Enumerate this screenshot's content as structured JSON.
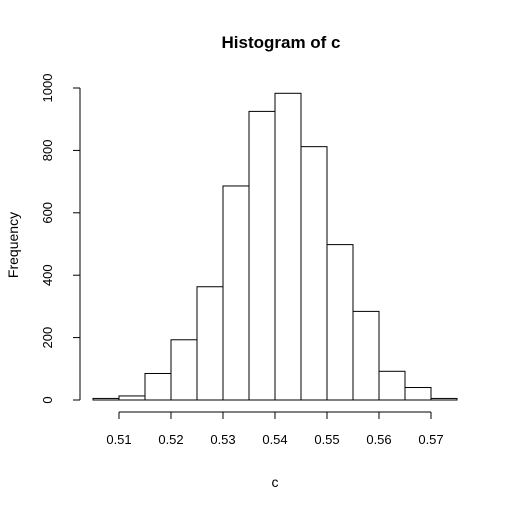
{
  "chart_data": {
    "type": "bar",
    "title": "Histogram of c",
    "xlabel": "c",
    "ylabel": "Frequency",
    "bin_edges": [
      0.505,
      0.51,
      0.515,
      0.52,
      0.525,
      0.53,
      0.535,
      0.54,
      0.545,
      0.55,
      0.555,
      0.56,
      0.565,
      0.57,
      0.575
    ],
    "values": [
      5,
      13,
      85,
      193,
      363,
      686,
      925,
      983,
      812,
      498,
      284,
      92,
      40,
      5
    ],
    "xlim": [
      0.505,
      0.575
    ],
    "ylim": [
      0,
      1000
    ],
    "x_ticks": [
      "0.51",
      "0.52",
      "0.53",
      "0.54",
      "0.55",
      "0.56",
      "0.57"
    ],
    "y_ticks": [
      "0",
      "200",
      "400",
      "600",
      "800",
      "1000"
    ],
    "grid": false,
    "legend": "none"
  }
}
